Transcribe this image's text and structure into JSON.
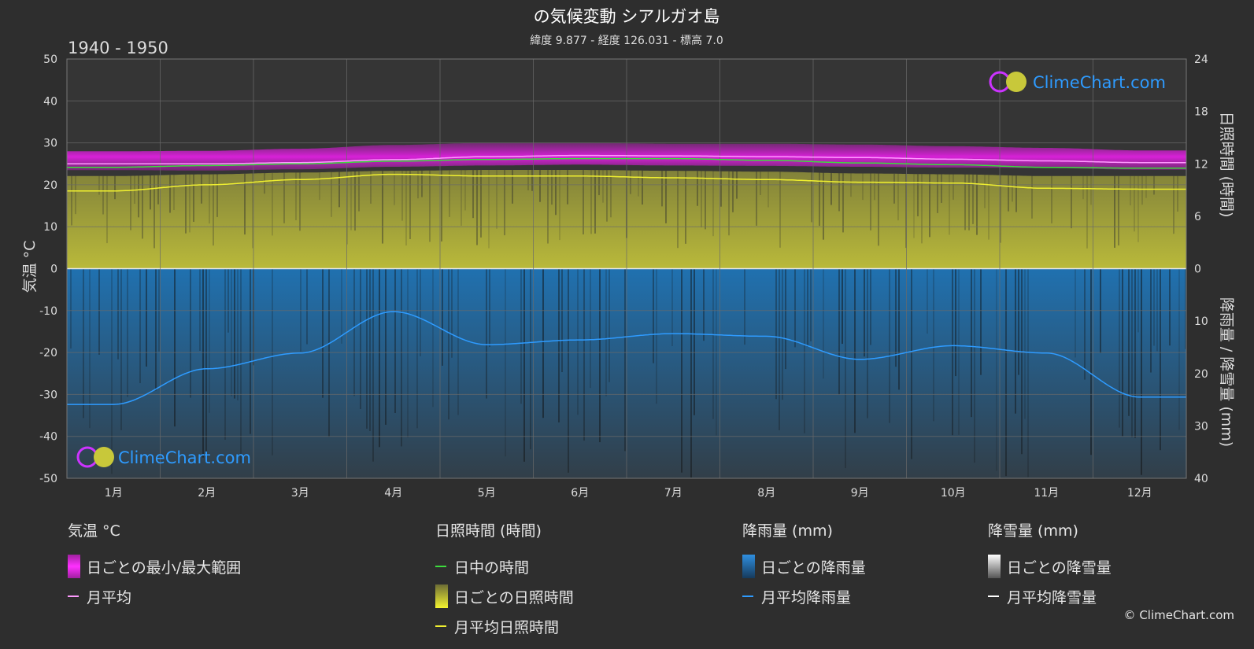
{
  "header": {
    "title": "の気候変動 シアルガオ島",
    "subtitle": "緯度 9.877 - 経度 126.031 - 標高 7.0",
    "period": "1940 - 1950"
  },
  "watermark": {
    "text": "ClimeChart.com"
  },
  "copyright": "© ClimeChart.com",
  "colors": {
    "background": "#2e2e2e",
    "temp_range": "#d81ad8",
    "temp_avg": "#ff9aff",
    "daylight": "#3ddc3d",
    "sunshine_fill": "#b9b92c",
    "sunshine_avg": "#f0f030",
    "rain_fill": "#1d6fae",
    "rain_avg": "#2e9bff",
    "snow_avg": "#ffffff"
  },
  "chart_data": {
    "type": "line",
    "x_tick_labels": [
      "1月",
      "2月",
      "3月",
      "4月",
      "5月",
      "6月",
      "7月",
      "8月",
      "9月",
      "10月",
      "11月",
      "12月"
    ],
    "axes": {
      "left": {
        "label": "気温 °C",
        "range": [
          -50,
          50
        ],
        "ticks": [
          "50",
          "40",
          "30",
          "20",
          "10",
          "0",
          "-10",
          "-20",
          "-30",
          "-40",
          "-50"
        ]
      },
      "right_top": {
        "label": "日照時間 (時間)",
        "range": [
          0,
          24
        ],
        "ticks": [
          "24",
          "18",
          "12",
          "6",
          "0"
        ]
      },
      "right_bottom": {
        "label": "降雨量 / 降雪量 (mm)",
        "range": [
          0,
          40
        ],
        "ticks": [
          "10",
          "20",
          "30",
          "40"
        ]
      }
    },
    "grid": true,
    "series": [
      {
        "name": "日ごとの最小/最大範囲",
        "kind": "temp_range",
        "min": [
          23.5,
          23.4,
          23.7,
          24.3,
          24.6,
          24.8,
          24.6,
          24.5,
          24.3,
          24.1,
          24.0,
          23.6
        ],
        "max": [
          28.0,
          28.1,
          28.6,
          29.5,
          30.0,
          30.0,
          29.8,
          29.8,
          29.6,
          29.2,
          28.8,
          28.2
        ]
      },
      {
        "name": "月平均",
        "kind": "temp_avg",
        "values": [
          25.0,
          25.0,
          25.3,
          26.0,
          26.7,
          27.0,
          26.9,
          26.7,
          26.5,
          26.1,
          25.7,
          25.3
        ]
      },
      {
        "name": "日中の時間",
        "kind": "daylight_hours",
        "values": [
          11.6,
          11.8,
          12.0,
          12.3,
          12.5,
          12.6,
          12.6,
          12.4,
          12.1,
          11.9,
          11.6,
          11.5
        ]
      },
      {
        "name": "日ごとの日照時間",
        "kind": "sunshine_daily",
        "values": [
          10.6,
          10.8,
          11.0,
          11.2,
          11.3,
          11.3,
          11.2,
          11.1,
          10.9,
          10.8,
          10.6,
          10.6
        ]
      },
      {
        "name": "月平均日照時間",
        "kind": "sunshine_avg",
        "values": [
          8.9,
          9.6,
          10.2,
          10.8,
          10.6,
          10.6,
          10.4,
          10.2,
          9.9,
          9.8,
          9.2,
          9.1
        ]
      },
      {
        "name": "月平均降雨量",
        "kind": "rain_avg",
        "values": [
          25.9,
          19.1,
          16.1,
          8.2,
          14.5,
          13.6,
          12.4,
          12.9,
          17.3,
          14.7,
          16.1,
          24.5
        ]
      }
    ]
  },
  "legend": {
    "groups": [
      {
        "heading": "気温 °C",
        "items": [
          {
            "label": "日ごとの最小/最大範囲",
            "swatch": "box-temp"
          },
          {
            "label": "月平均",
            "swatch": "line-temp"
          }
        ]
      },
      {
        "heading": "日照時間 (時間)",
        "items": [
          {
            "label": "日中の時間",
            "swatch": "line-daylight"
          },
          {
            "label": "日ごとの日照時間",
            "swatch": "box-sun"
          },
          {
            "label": "月平均日照時間",
            "swatch": "line-sun"
          }
        ]
      },
      {
        "heading": "降雨量 (mm)",
        "items": [
          {
            "label": "日ごとの降雨量",
            "swatch": "box-rain"
          },
          {
            "label": "月平均降雨量",
            "swatch": "line-rain"
          }
        ]
      },
      {
        "heading": "降雪量 (mm)",
        "items": [
          {
            "label": "日ごとの降雪量",
            "swatch": "box-snow"
          },
          {
            "label": "月平均降雪量",
            "swatch": "line-snow"
          }
        ]
      }
    ]
  }
}
